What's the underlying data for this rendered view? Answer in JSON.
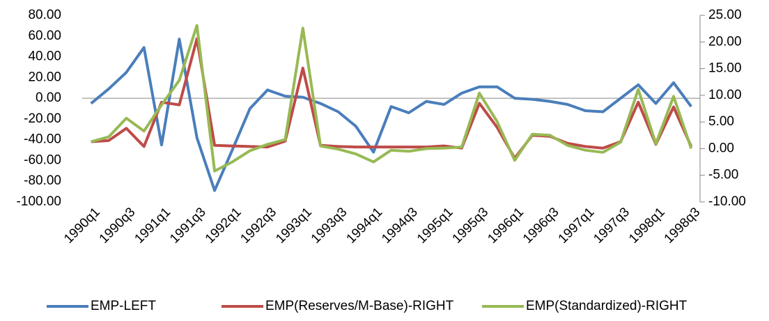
{
  "chart_data": {
    "type": "line",
    "categories": [
      "1990q1",
      null,
      "1990q3",
      null,
      "1991q1",
      null,
      "1991q3",
      null,
      "1992q1",
      null,
      "1992q3",
      null,
      "1993q1",
      null,
      "1993q3",
      null,
      "1994q1",
      null,
      "1994q3",
      null,
      "1995q1",
      null,
      "1995q3",
      null,
      "1996q1",
      null,
      "1996q3",
      null,
      "1997q1",
      null,
      "1997q3",
      null,
      "1998q1",
      null,
      "1998q3"
    ],
    "series": [
      {
        "name": "EMP-LEFT",
        "color": "#4a7ebb",
        "values": [
          -5,
          9,
          25,
          49,
          -45,
          57,
          -38,
          -89,
          -50,
          -10,
          8,
          2,
          1,
          -5,
          -13,
          -27,
          -52,
          -8,
          -14,
          -3,
          -6,
          5,
          11,
          11,
          0,
          -1,
          -3,
          -6,
          -12,
          -13,
          0,
          13,
          -5,
          15,
          -8
        ]
      },
      {
        "name": "EMP(Reserves/M-Base)-RIGHT",
        "color": "#be4b48",
        "axis": "y2",
        "values": [
          1.3,
          1.5,
          3.8,
          0.4,
          8.7,
          8.2,
          20.6,
          0.6,
          0.5,
          0.4,
          0.3,
          1.4,
          15.1,
          0.6,
          0.4,
          0.3,
          0.3,
          0.3,
          0.3,
          0.3,
          0.5,
          0.1,
          8.5,
          4,
          -1.8,
          2.5,
          2.3,
          1,
          0.4,
          0.1,
          1.3,
          8.7,
          0.8,
          7.8,
          0.4
        ]
      },
      {
        "name": "EMP(Standardized)-RIGHT",
        "color": "#98b954",
        "axis": "y2",
        "values": [
          1.3,
          2.2,
          5.7,
          3.3,
          8.2,
          12.8,
          23.1,
          -4.2,
          -2.5,
          -0.4,
          0.8,
          1.7,
          22.6,
          0.5,
          -0.1,
          -1,
          -2.5,
          -0.3,
          -0.5,
          0,
          0.1,
          0.3,
          10.4,
          5.1,
          -2.2,
          2.7,
          2.5,
          0.6,
          -0.3,
          -0.7,
          1.2,
          11.1,
          0.9,
          9.8,
          0
        ]
      }
    ],
    "ylim": [
      -100,
      80
    ],
    "yticks": [
      {
        "value": -100,
        "label": "-100.00"
      },
      {
        "value": -80,
        "label": "-80.00"
      },
      {
        "value": -60,
        "label": "-60.00"
      },
      {
        "value": -40,
        "label": "-40.00"
      },
      {
        "value": -20,
        "label": "-20.00"
      },
      {
        "value": 0,
        "label": "0.00"
      },
      {
        "value": 20,
        "label": "20.00"
      },
      {
        "value": 40,
        "label": "40.00"
      },
      {
        "value": 60,
        "label": "60.00"
      },
      {
        "value": 80,
        "label": "80.00"
      }
    ],
    "y2lim": [
      -10,
      25
    ],
    "y2ticks": [
      {
        "value": -10,
        "label": "-10.00"
      },
      {
        "value": -5,
        "label": "-5.00"
      },
      {
        "value": 0,
        "label": "0.00"
      },
      {
        "value": 5,
        "label": "5.00"
      },
      {
        "value": 10,
        "label": "10.00"
      },
      {
        "value": 15,
        "label": "15.00"
      },
      {
        "value": 20,
        "label": "20.00"
      },
      {
        "value": 25,
        "label": "25.00"
      }
    ],
    "legend": "bottom",
    "grid": false
  }
}
